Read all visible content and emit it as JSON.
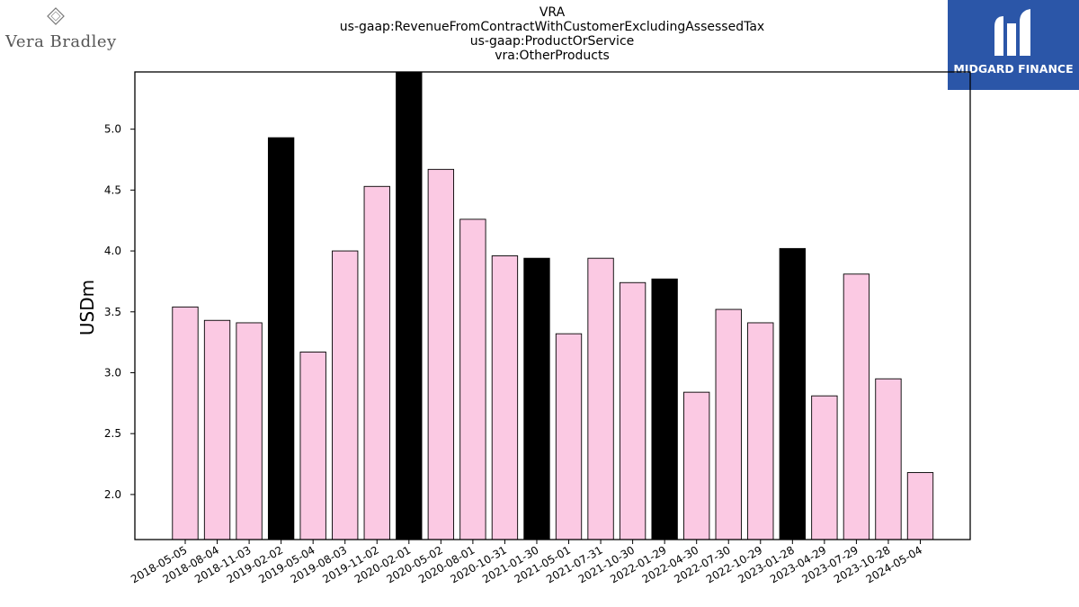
{
  "header": {
    "title_lines": [
      "VRA",
      "us-gaap:RevenueFromContractWithCustomerExcludingAssessedTax",
      "us-gaap:ProductOrService",
      "vra:OtherProducts"
    ]
  },
  "logos": {
    "left_name": "Vera Bradley",
    "right_name": "MIDGARD FINANCE",
    "right_bg": "#2b56a8"
  },
  "colors": {
    "bar_default": "#fbc9e3",
    "bar_highlight": "#000000"
  },
  "chart_data": {
    "type": "bar",
    "title": "",
    "xlabel": "",
    "ylabel": "USDm",
    "ylim": [
      1.63,
      5.47
    ],
    "yticks": [
      2.0,
      2.5,
      3.0,
      3.5,
      4.0,
      4.5,
      5.0
    ],
    "ytick_labels": [
      "2.0",
      "2.5",
      "3.0",
      "3.5",
      "4.0",
      "4.5",
      "5.0"
    ],
    "grid": false,
    "categories": [
      "2018-05-05",
      "2018-08-04",
      "2018-11-03",
      "2019-02-02",
      "2019-05-04",
      "2019-08-03",
      "2019-11-02",
      "2020-02-01",
      "2020-05-02",
      "2020-08-01",
      "2020-10-31",
      "2021-01-30",
      "2021-05-01",
      "2021-07-31",
      "2021-10-30",
      "2022-01-29",
      "2022-04-30",
      "2022-07-30",
      "2022-10-29",
      "2023-01-28",
      "2023-04-29",
      "2023-07-29",
      "2023-10-28",
      "2024-05-04"
    ],
    "values": [
      3.54,
      3.43,
      3.41,
      4.93,
      3.17,
      4.0,
      4.53,
      5.47,
      4.67,
      4.26,
      3.96,
      3.94,
      3.32,
      3.94,
      3.74,
      3.77,
      2.84,
      3.52,
      3.41,
      4.02,
      2.81,
      3.81,
      2.95,
      2.18
    ],
    "highlighted": [
      "2019-02-02",
      "2020-02-01",
      "2021-01-30",
      "2022-01-29",
      "2023-01-28"
    ]
  }
}
